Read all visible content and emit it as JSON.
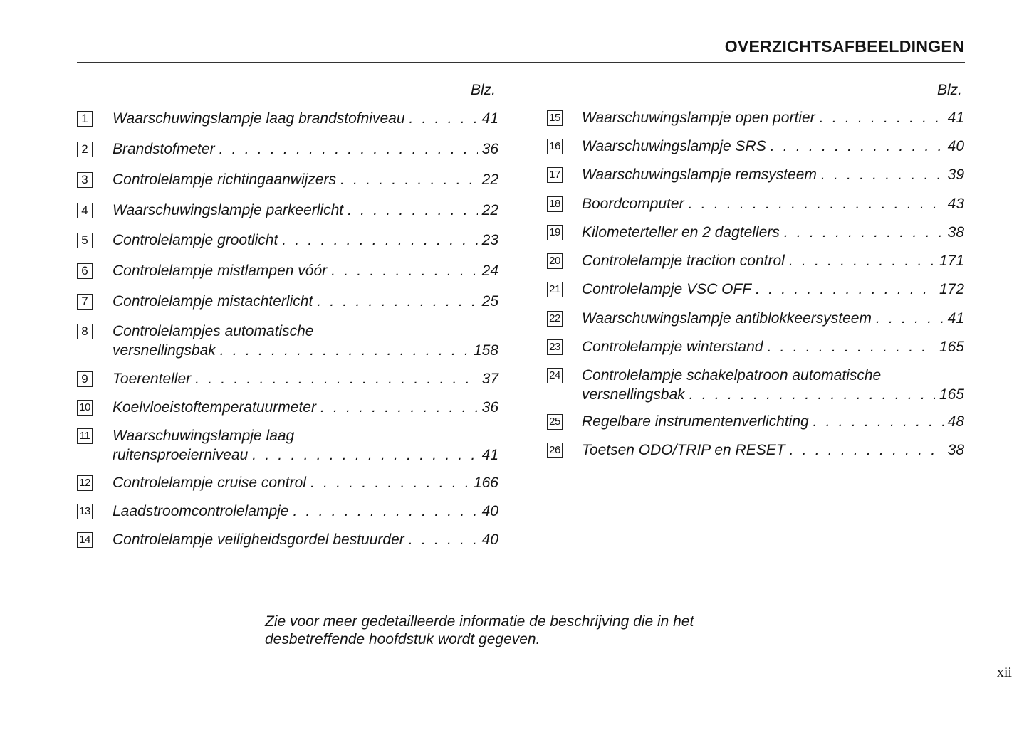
{
  "header": {
    "title": "OVERZICHTSAFBEELDINGEN"
  },
  "columns": [
    {
      "page_heading": "Blz.",
      "items": [
        {
          "number": "1",
          "lines": [
            "Waarschuwingslampje laag brandstofniveau"
          ],
          "page": "41"
        },
        {
          "number": "2",
          "lines": [
            "Brandstofmeter"
          ],
          "page": "36"
        },
        {
          "number": "3",
          "lines": [
            "Controlelampje richtingaanwijzers"
          ],
          "page": "22"
        },
        {
          "number": "4",
          "lines": [
            "Waarschuwingslampje parkeerlicht"
          ],
          "page": "22"
        },
        {
          "number": "5",
          "lines": [
            "Controlelampje grootlicht"
          ],
          "page": "23"
        },
        {
          "number": "6",
          "lines": [
            "Controlelampje mistlampen vóór"
          ],
          "page": "24"
        },
        {
          "number": "7",
          "lines": [
            "Controlelampje mistachterlicht"
          ],
          "page": "25"
        },
        {
          "number": "8",
          "lines": [
            "Controlelampjes automatische",
            "versnellingsbak"
          ],
          "page": "158"
        },
        {
          "number": "9",
          "lines": [
            "Toerenteller"
          ],
          "page": "37"
        },
        {
          "number": "10",
          "lines": [
            "Koelvloeistoftemperatuurmeter"
          ],
          "page": "36"
        },
        {
          "number": "11",
          "lines": [
            "Waarschuwingslampje laag",
            "ruitensproeierniveau"
          ],
          "page": "41"
        },
        {
          "number": "12",
          "lines": [
            "Controlelampje cruise control"
          ],
          "page": "166"
        },
        {
          "number": "13",
          "lines": [
            "Laadstroomcontrolelampje"
          ],
          "page": "40"
        },
        {
          "number": "14",
          "lines": [
            "Controlelampje veiligheidsgordel bestuurder"
          ],
          "page": "40"
        }
      ]
    },
    {
      "page_heading": "Blz.",
      "items": [
        {
          "number": "15",
          "lines": [
            "Waarschuwingslampje open portier"
          ],
          "page": "41"
        },
        {
          "number": "16",
          "lines": [
            "Waarschuwingslampje SRS"
          ],
          "page": "40"
        },
        {
          "number": "17",
          "lines": [
            "Waarschuwingslampje remsysteem"
          ],
          "page": "39"
        },
        {
          "number": "18",
          "lines": [
            "Boordcomputer"
          ],
          "page": "43"
        },
        {
          "number": "19",
          "lines": [
            "Kilometerteller en 2 dagtellers"
          ],
          "page": "38"
        },
        {
          "number": "20",
          "lines": [
            "Controlelampje traction control"
          ],
          "page": "171"
        },
        {
          "number": "21",
          "lines": [
            "Controlelampje VSC OFF"
          ],
          "page": "172"
        },
        {
          "number": "22",
          "lines": [
            "Waarschuwingslampje antiblokkeersysteem"
          ],
          "page": "41"
        },
        {
          "number": "23",
          "lines": [
            "Controlelampje winterstand"
          ],
          "page": "165"
        },
        {
          "number": "24",
          "lines": [
            "Controlelampje schakelpatroon automatische",
            "versnellingsbak"
          ],
          "page": "165"
        },
        {
          "number": "25",
          "lines": [
            "Regelbare instrumentenverlichting"
          ],
          "page": "48"
        },
        {
          "number": "26",
          "lines": [
            "Toetsen ODO/TRIP en RESET"
          ],
          "page": "38"
        }
      ]
    }
  ],
  "note": {
    "lines": [
      "Zie voor meer gedetailleerde informatie de beschrijving die in het",
      "desbetreffende hoofdstuk wordt gegeven."
    ]
  },
  "page_number": "xii"
}
